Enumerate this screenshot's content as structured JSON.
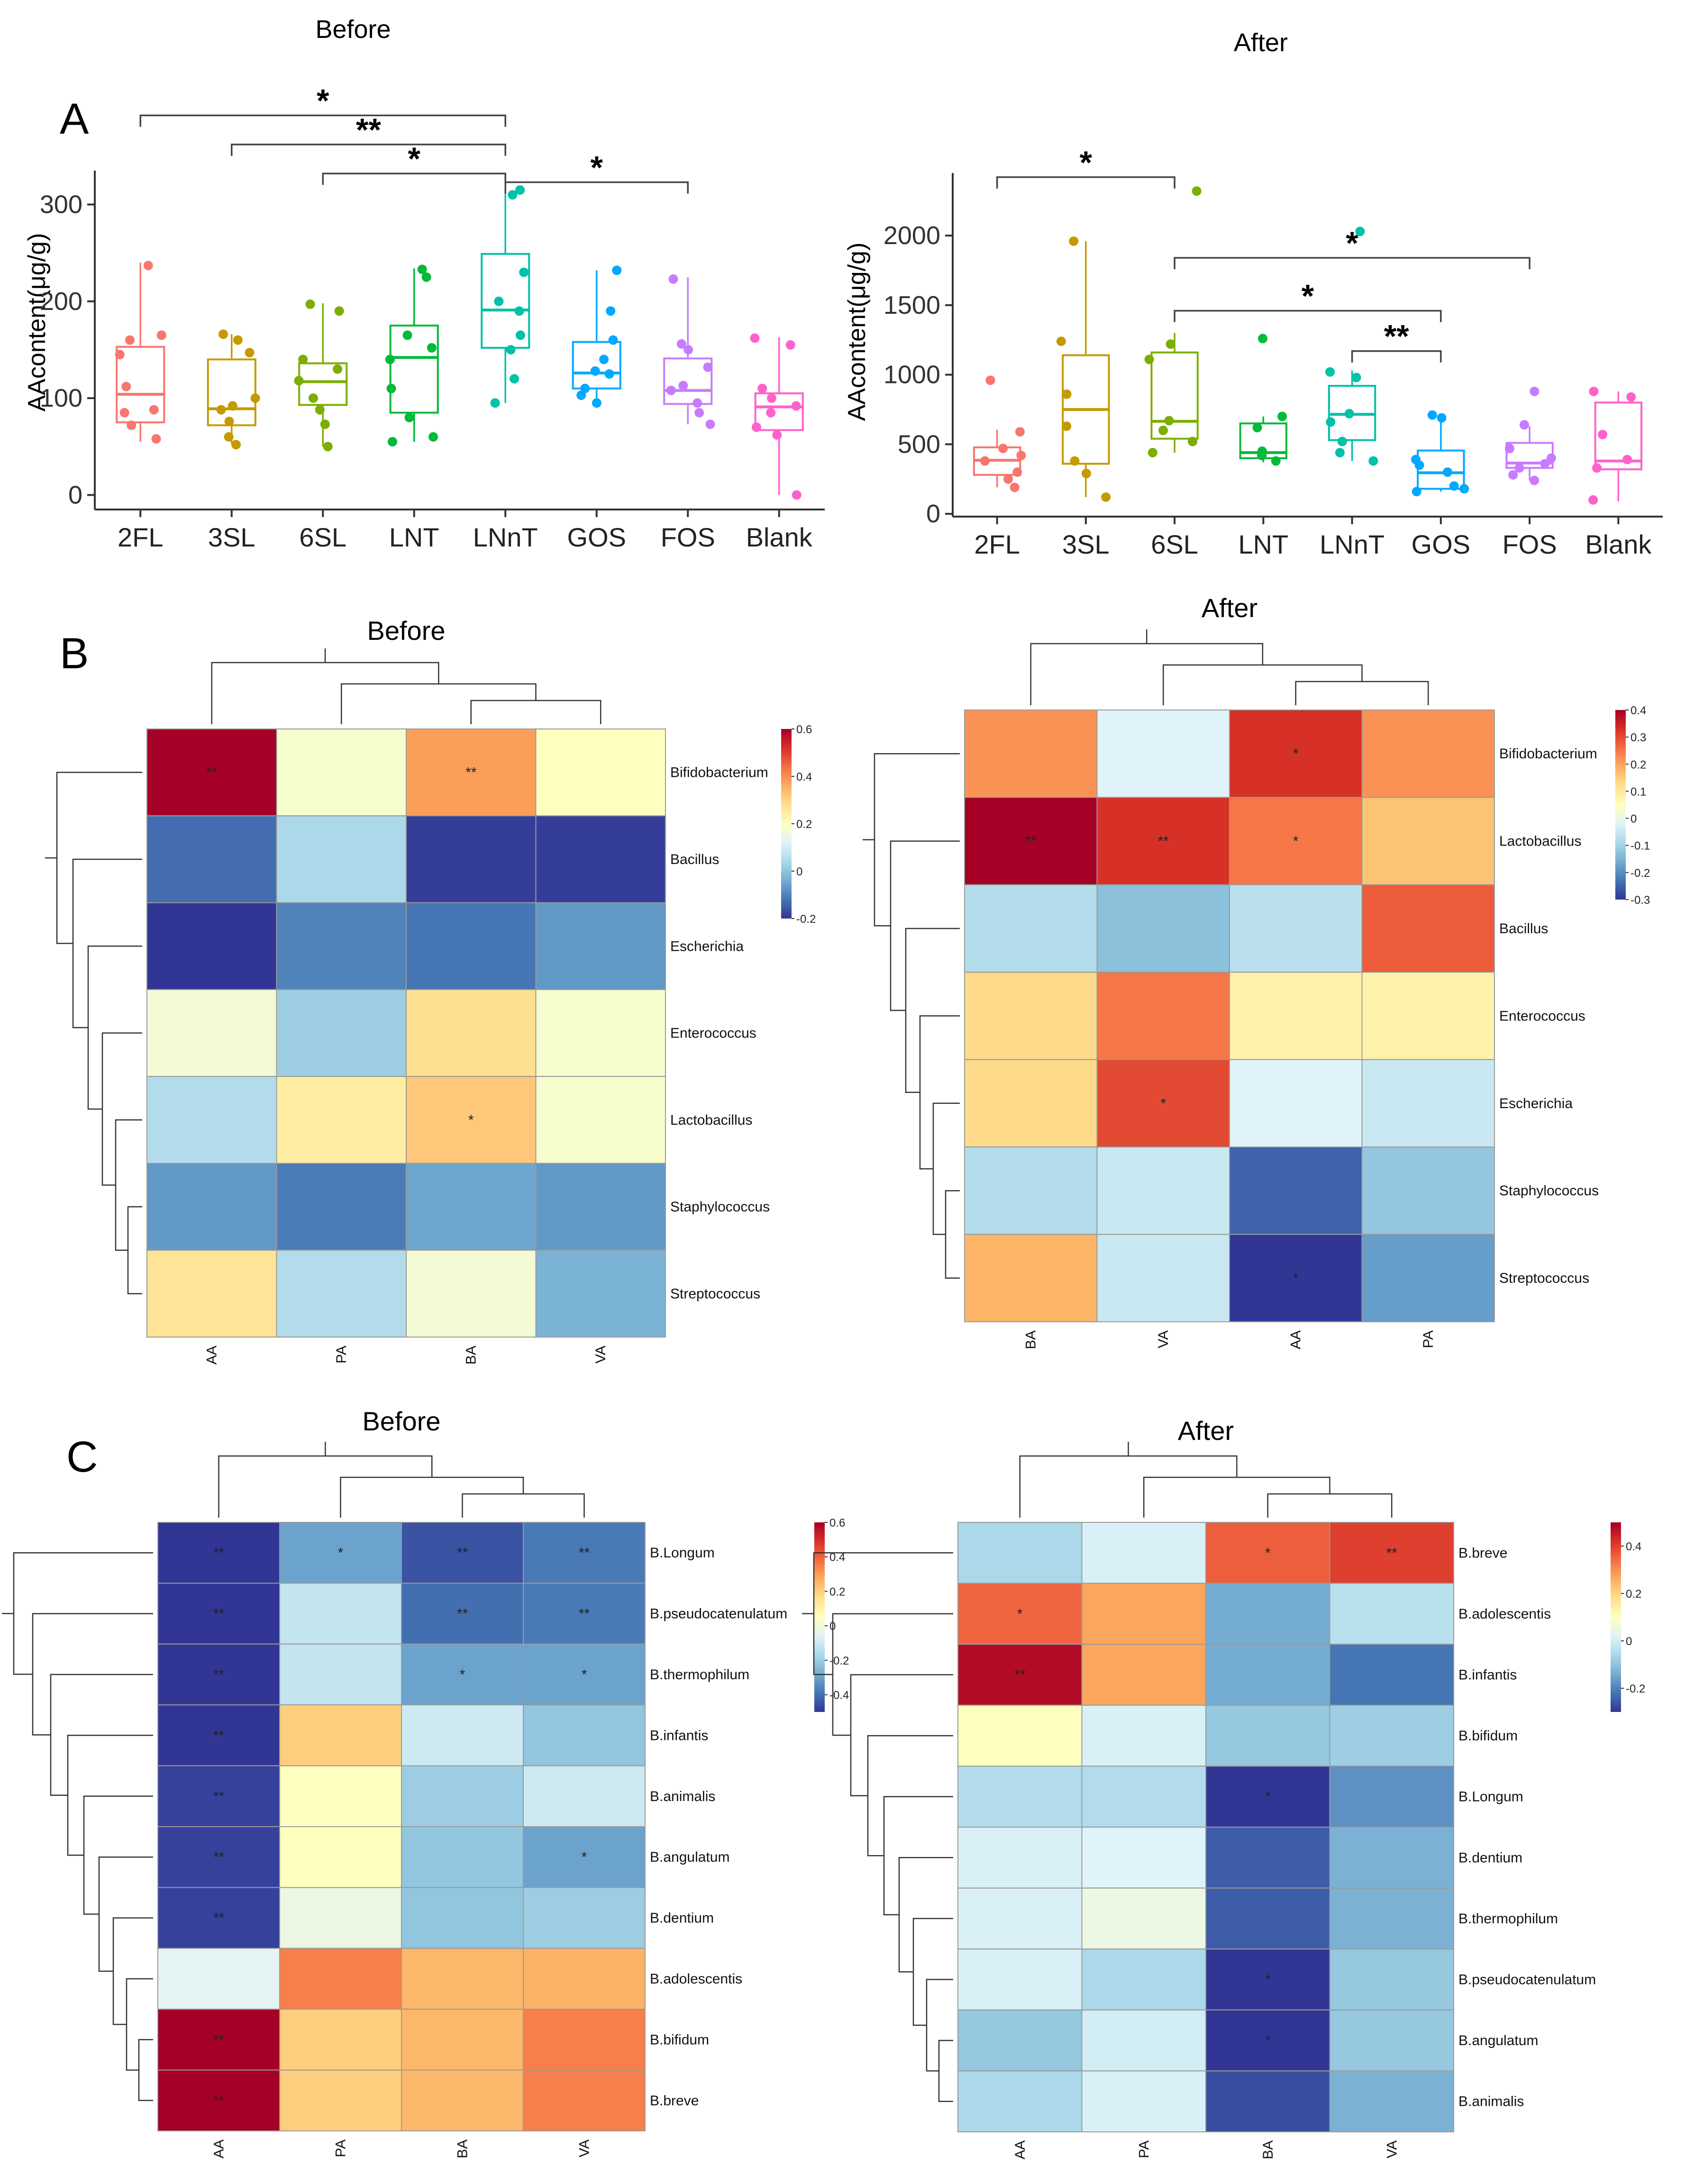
{
  "panel_letters": {
    "A": "A",
    "B": "B",
    "C": "C"
  },
  "colors": {
    "2FL": "#F8766D",
    "3SL": "#C49A00",
    "6SL": "#7CAE00",
    "LNT": "#00BA38",
    "LNnT": "#00C1A9",
    "GOS": "#00A9FF",
    "FOS": "#C77CFF",
    "Blank": "#FF61CC"
  },
  "heat_colors": [
    "#313695",
    "#4575B4",
    "#74ADD1",
    "#ABD9E9",
    "#E0F3F8",
    "#FFFFBF",
    "#FEE090",
    "#FDAE61",
    "#F46D43",
    "#D73027",
    "#A50026"
  ],
  "chart_data": [
    {
      "type": "box",
      "title": "Before",
      "ylabel": "AAcontent(μg/g)",
      "ylim": [
        -15,
        335
      ],
      "yticks": [
        0,
        100,
        200,
        300
      ],
      "categories": [
        "2FL",
        "3SL",
        "6SL",
        "LNT",
        "LNnT",
        "GOS",
        "FOS",
        "Blank"
      ],
      "boxes": [
        {
          "q1": 75,
          "median": 104,
          "q3": 153,
          "low": 55,
          "high": 240,
          "points": [
            237,
            165,
            160,
            145,
            112,
            88,
            85,
            72,
            58
          ]
        },
        {
          "q1": 72,
          "median": 89,
          "q3": 140,
          "low": 53,
          "high": 166,
          "points": [
            166,
            160,
            147,
            100,
            92,
            88,
            76,
            60,
            52
          ]
        },
        {
          "q1": 93,
          "median": 117,
          "q3": 136,
          "low": 50,
          "high": 198,
          "points": [
            197,
            190,
            140,
            130,
            118,
            100,
            88,
            73,
            50
          ]
        },
        {
          "q1": 85,
          "median": 142,
          "q3": 175,
          "low": 55,
          "high": 234,
          "points": [
            233,
            225,
            165,
            152,
            140,
            110,
            80,
            60,
            55
          ]
        },
        {
          "q1": 152,
          "median": 191,
          "q3": 249,
          "low": 95,
          "high": 318,
          "points": [
            315,
            310,
            230,
            200,
            190,
            165,
            150,
            120,
            95
          ]
        },
        {
          "q1": 110,
          "median": 126,
          "q3": 158,
          "low": 92,
          "high": 232,
          "points": [
            232,
            190,
            160,
            140,
            128,
            125,
            110,
            103,
            95
          ]
        },
        {
          "q1": 94,
          "median": 108,
          "q3": 141,
          "low": 73,
          "high": 225,
          "points": [
            223,
            156,
            150,
            132,
            113,
            108,
            95,
            85,
            73
          ]
        },
        {
          "q1": 67,
          "median": 91,
          "q3": 105,
          "low": 0,
          "high": 163,
          "points": [
            162,
            155,
            110,
            100,
            92,
            85,
            70,
            62,
            0
          ]
        }
      ],
      "brackets": [
        {
          "from": "2FL",
          "to": "LNnT",
          "label": "*",
          "y": 392
        },
        {
          "from": "3SL",
          "to": "LNnT",
          "label": "**",
          "y": 362
        },
        {
          "from": "6SL",
          "to": "LNnT",
          "label": "*",
          "y": 332
        },
        {
          "from": "LNnT",
          "to": "FOS",
          "label": "*",
          "y": 323
        }
      ]
    },
    {
      "type": "box",
      "title": "After",
      "ylabel": "AAcontent(μg/g)",
      "ylim": [
        -20,
        2450
      ],
      "yticks": [
        0,
        500,
        1000,
        1500,
        2000
      ],
      "categories": [
        "2FL",
        "3SL",
        "6SL",
        "LNT",
        "LNnT",
        "GOS",
        "FOS",
        "Blank"
      ],
      "boxes": [
        {
          "q1": 280,
          "median": 385,
          "q3": 478,
          "low": 190,
          "high": 605,
          "points": [
            960,
            590,
            470,
            420,
            380,
            300,
            250,
            190
          ]
        },
        {
          "q1": 360,
          "median": 750,
          "q3": 1140,
          "low": 120,
          "high": 1960,
          "points": [
            1960,
            1240,
            860,
            630,
            380,
            290,
            120
          ]
        },
        {
          "q1": 540,
          "median": 665,
          "q3": 1160,
          "low": 440,
          "high": 1300,
          "points": [
            2320,
            1220,
            1110,
            670,
            600,
            520,
            440
          ]
        },
        {
          "q1": 400,
          "median": 440,
          "q3": 650,
          "low": 370,
          "high": 700,
          "points": [
            1260,
            700,
            620,
            450,
            420,
            380
          ]
        },
        {
          "q1": 530,
          "median": 715,
          "q3": 920,
          "low": 380,
          "high": 1030,
          "points": [
            2030,
            1020,
            980,
            720,
            660,
            520,
            440,
            380
          ]
        },
        {
          "q1": 180,
          "median": 295,
          "q3": 455,
          "low": 160,
          "high": 710,
          "points": [
            710,
            690,
            390,
            350,
            300,
            200,
            180,
            160
          ]
        },
        {
          "q1": 330,
          "median": 365,
          "q3": 510,
          "low": 240,
          "high": 630,
          "points": [
            880,
            640,
            470,
            400,
            360,
            330,
            280,
            240
          ]
        },
        {
          "q1": 320,
          "median": 380,
          "q3": 800,
          "low": 90,
          "high": 880,
          "points": [
            880,
            840,
            570,
            390,
            330,
            100
          ]
        }
      ],
      "brackets": [
        {
          "from": "2FL",
          "to": "6SL",
          "label": "*",
          "y": 2420
        },
        {
          "from": "6SL",
          "to": "FOS",
          "label": "*",
          "y": 1840
        },
        {
          "from": "6SL",
          "to": "GOS",
          "label": "*",
          "y": 1460
        },
        {
          "from": "LNnT",
          "to": "GOS",
          "label": "**",
          "y": 1170
        }
      ]
    },
    {
      "type": "heatmap",
      "title": "Before",
      "columns": [
        "AA",
        "PA",
        "BA",
        "VA"
      ],
      "rows": [
        "Bifidobacterium",
        "Bacillus",
        "Escherichia",
        "Enterococcus",
        "Lactobacillus",
        "Staphylococcus",
        "Streptococcus"
      ],
      "values": [
        [
          0.6,
          0.18,
          0.38,
          0.2
        ],
        [
          -0.13,
          0.04,
          -0.19,
          -0.19
        ],
        [
          -0.22,
          -0.1,
          -0.12,
          -0.07
        ],
        [
          0.17,
          0.02,
          0.28,
          0.18
        ],
        [
          0.05,
          0.25,
          0.32,
          0.18
        ],
        [
          -0.07,
          -0.11,
          -0.05,
          -0.07
        ],
        [
          0.27,
          0.05,
          0.17,
          -0.03
        ]
      ],
      "stars": [
        [
          "**",
          "",
          "**",
          ""
        ],
        [
          "",
          "",
          "",
          ""
        ],
        [
          "",
          "",
          "",
          ""
        ],
        [
          "",
          "",
          "",
          ""
        ],
        [
          "",
          "",
          "*",
          ""
        ],
        [
          "",
          "",
          "",
          ""
        ],
        [
          "",
          "",
          "",
          ""
        ]
      ],
      "legend": {
        "min": -0.2,
        "max": 0.6,
        "ticks": [
          0.6,
          0.4,
          0.2,
          0,
          -0.2
        ]
      }
    },
    {
      "type": "heatmap",
      "title": "After",
      "columns": [
        "BA",
        "VA",
        "AA",
        "PA"
      ],
      "rows": [
        "Bifidobacterium",
        "Lactobacillus",
        "Bacillus",
        "Enterococcus",
        "Escherichia",
        "Staphylococcus",
        "Streptococcus"
      ],
      "values": [
        [
          0.22,
          -0.02,
          0.33,
          0.22
        ],
        [
          0.4,
          0.33,
          0.25,
          0.16
        ],
        [
          -0.08,
          -0.13,
          -0.07,
          0.28
        ],
        [
          0.13,
          0.25,
          0.08,
          0.08
        ],
        [
          0.13,
          0.3,
          -0.02,
          -0.05
        ],
        [
          -0.08,
          -0.05,
          -0.25,
          -0.12
        ],
        [
          0.18,
          -0.05,
          -0.32,
          -0.18
        ]
      ],
      "stars": [
        [
          "",
          "",
          "*",
          ""
        ],
        [
          "**",
          "**",
          "*",
          ""
        ],
        [
          "",
          "",
          "",
          ""
        ],
        [
          "",
          "",
          "",
          ""
        ],
        [
          "",
          "*",
          "",
          ""
        ],
        [
          "",
          "",
          "",
          ""
        ],
        [
          "",
          "",
          "*",
          ""
        ]
      ],
      "legend": {
        "min": -0.3,
        "max": 0.4,
        "ticks": [
          0.4,
          0.3,
          0.2,
          0.1,
          0,
          -0.1,
          -0.2,
          -0.3
        ]
      }
    },
    {
      "type": "heatmap",
      "title": "Before",
      "columns": [
        "AA",
        "PA",
        "BA",
        "VA"
      ],
      "rows": [
        "B.Longum",
        "B.pseudocatenulatum",
        "B.thermophilum",
        "B.infantis",
        "B.animalis",
        "B.angulatum",
        "B.dentium",
        "B.adolescentis",
        "B.bifidum",
        "B.breve"
      ],
      "values": [
        [
          -0.55,
          -0.3,
          -0.45,
          -0.38
        ],
        [
          -0.55,
          -0.12,
          -0.4,
          -0.38
        ],
        [
          -0.55,
          -0.12,
          -0.3,
          -0.3
        ],
        [
          -0.5,
          0.2,
          -0.1,
          -0.22
        ],
        [
          -0.48,
          0.05,
          -0.2,
          -0.1
        ],
        [
          -0.48,
          0.05,
          -0.22,
          -0.3
        ],
        [
          -0.48,
          -0.02,
          -0.22,
          -0.2
        ],
        [
          -0.05,
          0.35,
          0.25,
          0.26
        ],
        [
          0.6,
          0.2,
          0.25,
          0.35
        ],
        [
          0.6,
          0.2,
          0.25,
          0.35
        ]
      ],
      "stars": [
        [
          "**",
          "*",
          "**",
          "**"
        ],
        [
          "**",
          "",
          "**",
          "**"
        ],
        [
          "**",
          "",
          "*",
          "*"
        ],
        [
          "**",
          "",
          "",
          ""
        ],
        [
          "**",
          "",
          "",
          ""
        ],
        [
          "**",
          "",
          "",
          "*"
        ],
        [
          "**",
          "",
          "",
          ""
        ],
        [
          "",
          "",
          "",
          ""
        ],
        [
          "**",
          "",
          "",
          ""
        ],
        [
          "**",
          "",
          "",
          ""
        ]
      ],
      "legend": {
        "min": -0.5,
        "max": 0.6,
        "ticks": [
          0.6,
          0.4,
          0.2,
          0,
          -0.2,
          -0.4
        ]
      }
    },
    {
      "type": "heatmap",
      "title": "After",
      "columns": [
        "AA",
        "PA",
        "BA",
        "VA"
      ],
      "rows": [
        "B.breve",
        "B.adolescentis",
        "B.infantis",
        "B.bifidum",
        "B.Longum",
        "B.dentium",
        "B.thermophilum",
        "B.pseudocatenulatum",
        "B.angulatum",
        "B.animalis"
      ],
      "values": [
        [
          -0.06,
          0.01,
          0.36,
          0.4
        ],
        [
          0.35,
          0.27,
          -0.14,
          -0.04
        ],
        [
          0.48,
          0.27,
          -0.14,
          -0.22
        ],
        [
          0.1,
          0.01,
          -0.09,
          -0.08
        ],
        [
          -0.05,
          -0.05,
          -0.3,
          -0.18
        ],
        [
          0.01,
          0.02,
          -0.25,
          -0.13
        ],
        [
          0.01,
          0.05,
          -0.25,
          -0.13
        ],
        [
          0.01,
          -0.06,
          -0.3,
          -0.09
        ],
        [
          -0.09,
          0.0,
          -0.3,
          -0.09
        ],
        [
          -0.06,
          0.01,
          -0.27,
          -0.13
        ]
      ],
      "stars": [
        [
          "",
          "",
          "*",
          "**"
        ],
        [
          "*",
          "",
          "",
          ""
        ],
        [
          "**",
          "",
          "",
          ""
        ],
        [
          "",
          "",
          "",
          ""
        ],
        [
          "",
          "",
          "*",
          ""
        ],
        [
          "",
          "",
          "",
          ""
        ],
        [
          "",
          "",
          "",
          ""
        ],
        [
          "",
          "",
          "*",
          ""
        ],
        [
          "",
          "",
          "*",
          ""
        ],
        [
          "",
          "",
          "",
          ""
        ]
      ],
      "legend": {
        "min": -0.3,
        "max": 0.5,
        "ticks": [
          0.4,
          0.2,
          0,
          -0.2
        ]
      }
    }
  ]
}
